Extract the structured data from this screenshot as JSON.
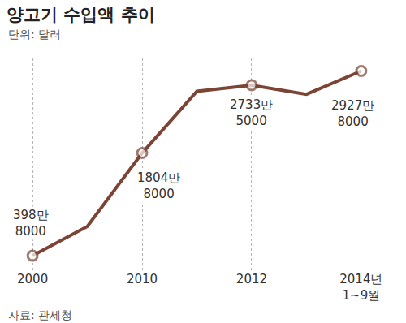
{
  "chart_data": {
    "type": "line",
    "title": "양고기 수입액 추이",
    "subtitle": "단위: 달러",
    "source": "자료: 관세청",
    "categories": [
      "2000",
      null,
      "2010",
      null,
      "2012",
      null,
      "2014년\n1~9월"
    ],
    "values": [
      3988000,
      8000000,
      18048000,
      26500000,
      27335000,
      26100000,
      29278000
    ],
    "value_labels": [
      "398만\n8000",
      null,
      "1804만\n8000",
      null,
      "2733만\n5000",
      null,
      "2927만\n8000"
    ],
    "data_labels": true,
    "color": "#7b4434",
    "marker": "circle",
    "ylim": [
      2000000,
      31000000
    ],
    "grid": true,
    "tick_labels": "x"
  }
}
